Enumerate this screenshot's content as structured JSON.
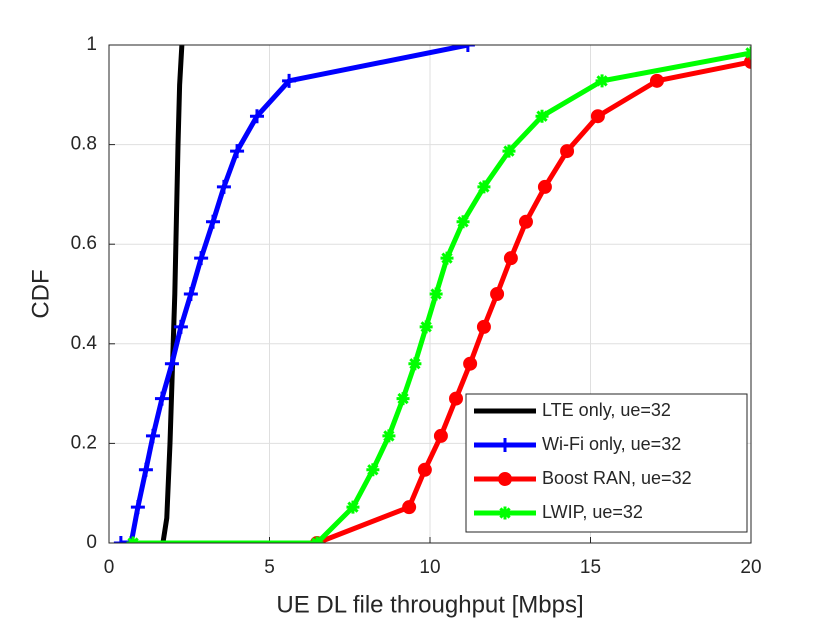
{
  "chart_data": {
    "type": "line",
    "xlabel": "UE DL file throughput [Mbps]",
    "ylabel": "CDF",
    "xlim": [
      0,
      20
    ],
    "xticks": [
      0,
      5,
      10,
      15,
      20
    ],
    "ylim": [
      0,
      1
    ],
    "yticks": [
      0,
      0.2,
      0.4,
      0.6,
      0.8,
      1
    ],
    "grid": true,
    "legend": "lower right",
    "series": [
      {
        "name": "LTE only, ue=32",
        "color": "#000000",
        "marker": "none",
        "x": [
          1.68,
          1.8,
          1.9,
          2.0,
          2.05,
          2.1,
          2.15,
          2.2,
          2.27
        ],
        "values": [
          0,
          0.05,
          0.2,
          0.4,
          0.5,
          0.65,
          0.8,
          0.92,
          1.0
        ]
      },
      {
        "name": "Wi-Fi only, ue=32",
        "color": "#0000ff",
        "marker": "plus",
        "x": [
          0.37,
          0.69,
          0.9,
          1.15,
          1.37,
          1.65,
          1.96,
          2.24,
          2.55,
          2.87,
          3.24,
          3.58,
          3.99,
          4.61,
          5.61,
          11.18
        ],
        "values": [
          0,
          0,
          0.072,
          0.147,
          0.215,
          0.29,
          0.36,
          0.434,
          0.5,
          0.572,
          0.645,
          0.715,
          0.787,
          0.857,
          0.928,
          1.0
        ]
      },
      {
        "name": "Boost RAN, ue=32",
        "color": "#ff0000",
        "marker": "circle",
        "x": [
          6.48,
          9.35,
          9.84,
          10.34,
          10.81,
          11.25,
          11.68,
          12.09,
          12.52,
          12.99,
          13.58,
          14.27,
          15.23,
          17.07,
          20
        ],
        "values": [
          0,
          0.072,
          0.147,
          0.215,
          0.29,
          0.36,
          0.434,
          0.5,
          0.572,
          0.645,
          0.715,
          0.787,
          0.857,
          0.928,
          0.966
        ]
      },
      {
        "name": "LWIP, ue=32",
        "color": "#00ff00",
        "marker": "star",
        "x": [
          0.75,
          6.48,
          7.6,
          8.22,
          8.72,
          9.16,
          9.53,
          9.88,
          10.19,
          10.53,
          11.03,
          11.68,
          12.46,
          13.49,
          15.36,
          20
        ],
        "values": [
          0,
          0,
          0.072,
          0.147,
          0.215,
          0.29,
          0.36,
          0.434,
          0.5,
          0.572,
          0.645,
          0.715,
          0.787,
          0.857,
          0.928,
          0.984
        ]
      }
    ]
  }
}
